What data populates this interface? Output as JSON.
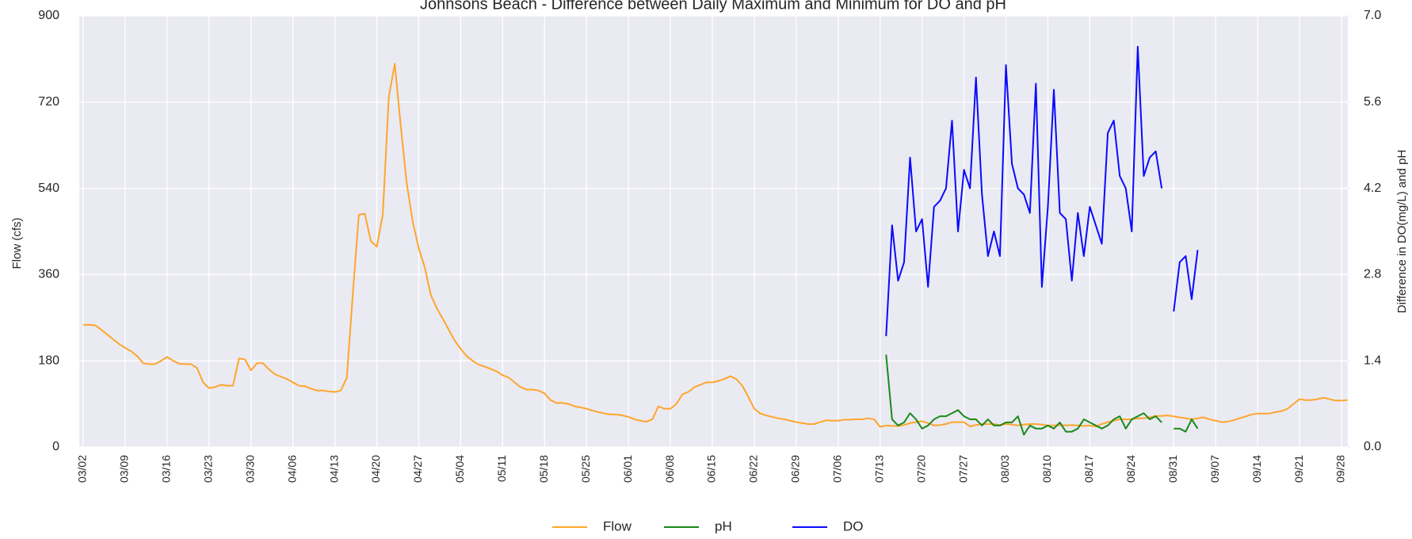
{
  "chart_data": {
    "type": "line",
    "title": "Johnsons Beach - Difference between Daily Maximum and Minimum for DO and pH",
    "ylabel": "Flow (cfs)",
    "y2label": "Difference in DO(mg/L) and pH",
    "categories": [
      "03/02",
      null,
      null,
      null,
      null,
      null,
      null,
      "03/09",
      null,
      null,
      null,
      null,
      null,
      null,
      "03/16",
      null,
      null,
      null,
      null,
      null,
      null,
      "03/23",
      null,
      null,
      null,
      null,
      null,
      null,
      "03/30",
      null,
      null,
      null,
      null,
      null,
      null,
      "04/06",
      null,
      null,
      null,
      null,
      null,
      null,
      "04/13",
      null,
      null,
      null,
      null,
      null,
      null,
      "04/20",
      null,
      null,
      null,
      null,
      null,
      null,
      "04/27",
      null,
      null,
      null,
      null,
      null,
      null,
      "05/04",
      null,
      null,
      null,
      null,
      null,
      null,
      "05/11",
      null,
      null,
      null,
      null,
      null,
      null,
      "05/18",
      null,
      null,
      null,
      null,
      null,
      null,
      "05/25",
      null,
      null,
      null,
      null,
      null,
      null,
      "06/01",
      null,
      null,
      null,
      null,
      null,
      null,
      "06/08",
      null,
      null,
      null,
      null,
      null,
      null,
      "06/15",
      null,
      null,
      null,
      null,
      null,
      null,
      "06/22",
      null,
      null,
      null,
      null,
      null,
      null,
      "06/29",
      null,
      null,
      null,
      null,
      null,
      null,
      "07/06",
      null,
      null,
      null,
      null,
      null,
      null,
      "07/13",
      null,
      null,
      null,
      null,
      null,
      null,
      "07/20",
      null,
      null,
      null,
      null,
      null,
      null,
      "07/27",
      null,
      null,
      null,
      null,
      null,
      null,
      "08/03",
      null,
      null,
      null,
      null,
      null,
      null,
      "08/10",
      null,
      null,
      null,
      null,
      null,
      null,
      "08/17",
      null,
      null,
      null,
      null,
      null,
      null,
      "08/24",
      null,
      null,
      null,
      null,
      null,
      null,
      "08/31",
      null,
      null,
      null,
      null,
      null,
      null,
      "09/07",
      null,
      null,
      null,
      null,
      null,
      null,
      "09/14",
      null,
      null,
      null,
      null,
      null,
      null,
      "09/21",
      null,
      null,
      null,
      null,
      null,
      null,
      "09/28",
      null
    ],
    "series": [
      {
        "name": "Flow",
        "color": "#ffa52c",
        "axis": "y",
        "values": [
          255,
          255,
          254,
          245,
          235,
          225,
          215,
          207,
          200,
          190,
          175,
          173,
          173,
          180,
          188,
          180,
          174,
          173,
          173,
          165,
          135,
          123,
          125,
          130,
          128,
          128,
          185,
          183,
          160,
          175,
          175,
          162,
          152,
          147,
          142,
          135,
          128,
          127,
          122,
          118,
          118,
          116,
          115,
          118,
          145,
          320,
          485,
          487,
          430,
          418,
          485,
          730,
          800,
          670,
          550,
          470,
          415,
          375,
          318,
          290,
          268,
          245,
          222,
          205,
          190,
          180,
          172,
          168,
          163,
          158,
          150,
          145,
          135,
          125,
          120,
          120,
          118,
          112,
          98,
          92,
          92,
          90,
          85,
          83,
          80,
          76,
          73,
          70,
          68,
          68,
          66,
          63,
          58,
          55,
          53,
          58,
          85,
          80,
          80,
          90,
          110,
          115,
          125,
          130,
          135,
          135,
          138,
          142,
          148,
          142,
          128,
          105,
          80,
          70,
          66,
          63,
          60,
          58,
          55,
          52,
          50,
          48,
          48,
          52,
          56,
          55,
          55,
          57,
          57,
          58,
          58,
          60,
          58,
          42,
          45,
          44,
          44,
          46,
          50,
          52,
          54,
          50,
          45,
          46,
          48,
          52,
          52,
          52,
          43,
          46,
          48,
          48,
          48,
          46,
          48,
          47,
          45,
          47,
          48,
          48,
          47,
          45,
          45,
          46,
          45,
          46,
          45,
          44,
          45,
          43,
          48,
          52,
          55,
          58,
          58,
          58,
          60,
          60,
          62,
          65,
          65,
          66,
          64,
          62,
          60,
          58,
          60,
          62,
          58,
          55,
          52,
          53,
          56,
          60,
          64,
          68,
          70,
          70,
          70,
          73,
          75,
          80,
          90,
          100,
          98,
          98,
          100,
          103,
          100,
          97,
          97,
          98
        ]
      },
      {
        "name": "pH",
        "color": "#1a8a1a",
        "axis": "y2",
        "values": [
          null,
          null,
          null,
          null,
          null,
          null,
          null,
          null,
          null,
          null,
          null,
          null,
          null,
          null,
          null,
          null,
          null,
          null,
          null,
          null,
          null,
          null,
          null,
          null,
          null,
          null,
          null,
          null,
          null,
          null,
          null,
          null,
          null,
          null,
          null,
          null,
          null,
          null,
          null,
          null,
          null,
          null,
          null,
          null,
          null,
          null,
          null,
          null,
          null,
          null,
          null,
          null,
          null,
          null,
          null,
          null,
          null,
          null,
          null,
          null,
          null,
          null,
          null,
          null,
          null,
          null,
          null,
          null,
          null,
          null,
          null,
          null,
          null,
          null,
          null,
          null,
          null,
          null,
          null,
          null,
          null,
          null,
          null,
          null,
          null,
          null,
          null,
          null,
          null,
          null,
          null,
          null,
          null,
          null,
          null,
          null,
          null,
          null,
          null,
          null,
          null,
          null,
          null,
          null,
          null,
          null,
          null,
          null,
          null,
          null,
          null,
          null,
          null,
          null,
          null,
          null,
          null,
          null,
          null,
          null,
          null,
          null,
          null,
          null,
          null,
          null,
          null,
          null,
          null,
          null,
          null,
          null,
          null,
          null,
          1.5,
          0.45,
          0.35,
          0.4,
          0.55,
          0.45,
          0.3,
          0.35,
          0.45,
          0.5,
          0.5,
          0.55,
          0.6,
          0.5,
          0.45,
          0.45,
          0.35,
          0.45,
          0.35,
          0.35,
          0.4,
          0.4,
          0.5,
          0.2,
          0.35,
          0.3,
          0.3,
          0.35,
          0.3,
          0.4,
          0.25,
          0.25,
          0.3,
          0.45,
          0.4,
          0.35,
          0.3,
          0.35,
          0.45,
          0.5,
          0.3,
          0.45,
          0.5,
          0.55,
          0.45,
          0.5,
          0.4,
          null,
          0.3,
          0.3,
          0.25,
          0.45,
          0.3,
          null,
          null,
          null,
          null,
          null,
          null,
          null,
          null,
          null,
          null,
          null,
          null,
          null,
          null,
          null,
          null,
          null,
          null,
          null,
          null,
          null,
          null,
          null,
          null,
          null
        ]
      },
      {
        "name": "DO",
        "color": "#0a0aff",
        "axis": "y2",
        "values": [
          null,
          null,
          null,
          null,
          null,
          null,
          null,
          null,
          null,
          null,
          null,
          null,
          null,
          null,
          null,
          null,
          null,
          null,
          null,
          null,
          null,
          null,
          null,
          null,
          null,
          null,
          null,
          null,
          null,
          null,
          null,
          null,
          null,
          null,
          null,
          null,
          null,
          null,
          null,
          null,
          null,
          null,
          null,
          null,
          null,
          null,
          null,
          null,
          null,
          null,
          null,
          null,
          null,
          null,
          null,
          null,
          null,
          null,
          null,
          null,
          null,
          null,
          null,
          null,
          null,
          null,
          null,
          null,
          null,
          null,
          null,
          null,
          null,
          null,
          null,
          null,
          null,
          null,
          null,
          null,
          null,
          null,
          null,
          null,
          null,
          null,
          null,
          null,
          null,
          null,
          null,
          null,
          null,
          null,
          null,
          null,
          null,
          null,
          null,
          null,
          null,
          null,
          null,
          null,
          null,
          null,
          null,
          null,
          null,
          null,
          null,
          null,
          null,
          null,
          null,
          null,
          null,
          null,
          null,
          null,
          null,
          null,
          null,
          null,
          null,
          null,
          null,
          null,
          null,
          null,
          null,
          null,
          null,
          null,
          1.8,
          3.6,
          2.7,
          3.0,
          4.7,
          3.5,
          3.7,
          2.6,
          3.9,
          4.0,
          4.2,
          5.3,
          3.5,
          4.5,
          4.2,
          6.0,
          4.1,
          3.1,
          3.5,
          3.1,
          6.2,
          4.6,
          4.2,
          4.1,
          3.8,
          5.9,
          2.6,
          3.9,
          5.8,
          3.8,
          3.7,
          2.7,
          3.8,
          3.1,
          3.9,
          3.6,
          3.3,
          5.1,
          5.3,
          4.4,
          4.2,
          3.5,
          6.5,
          4.4,
          4.7,
          4.8,
          4.2,
          null,
          2.2,
          3.0,
          3.1,
          2.4,
          3.2,
          null,
          null,
          null,
          null,
          null,
          null,
          null,
          null,
          null,
          null,
          null,
          null,
          null,
          null,
          null,
          null,
          null,
          null,
          null,
          null,
          null,
          null,
          null,
          null,
          null
        ]
      }
    ],
    "ylim": [
      0,
      900
    ],
    "yticks": [
      0,
      180,
      360,
      540,
      720,
      900
    ],
    "y2lim": [
      0,
      7
    ],
    "y2ticks": [
      {
        "value": 0,
        "label": "0.0"
      },
      1.4,
      2.8,
      4.2,
      5.6,
      {
        "value": 7,
        "label": "7.0"
      }
    ],
    "grid": true,
    "legend": "bottom"
  }
}
